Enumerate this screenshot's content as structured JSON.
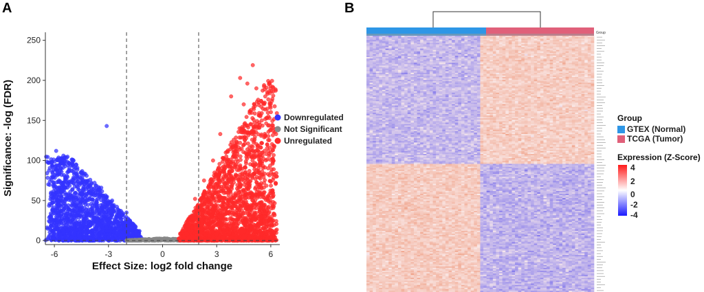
{
  "panels": {
    "a": "A",
    "b": "B"
  },
  "chart_data": [
    {
      "type": "scatter",
      "title": "",
      "xlabel": "Effect Size: log2 fold change",
      "ylabel": "Significance: -log (FDR)",
      "xlim": [
        -6.5,
        6.5
      ],
      "ylim": [
        -5,
        260
      ],
      "xticks": [
        -6,
        -3,
        0,
        3,
        6
      ],
      "yticks": [
        0,
        50,
        100,
        150,
        200,
        250
      ],
      "thresholds": {
        "x": [
          -2,
          2
        ],
        "y": 0
      },
      "series": [
        {
          "name": "Downregulated",
          "color": "#3333ff",
          "seed": 11,
          "count": 1700,
          "x_range": [
            -6.2,
            -1.2
          ],
          "y_typical_range": [
            0,
            110
          ],
          "points": [
            [
              -3.1,
              143
            ],
            [
              -5.9,
              112
            ],
            [
              -5.5,
              106
            ],
            [
              -5.0,
              101
            ],
            [
              -6.1,
              93
            ],
            [
              -4.8,
              95
            ],
            [
              -5.6,
              82
            ],
            [
              -6.0,
              66
            ],
            [
              -4.5,
              72
            ],
            [
              -3.4,
              66
            ],
            [
              -2.8,
              50
            ],
            [
              -2.0,
              35
            ],
            [
              -1.6,
              18
            ],
            [
              -1.3,
              8
            ],
            [
              -6.2,
              55
            ],
            [
              -5.8,
              46
            ]
          ]
        },
        {
          "name": "Not Significant",
          "color": "#888888",
          "seed": 23,
          "count": 320,
          "x_range": [
            -2.0,
            2.0
          ],
          "y_typical_range": [
            0,
            3
          ],
          "points": []
        },
        {
          "name": "Unregulated",
          "color": "#ff2a2a",
          "seed": 37,
          "count": 2300,
          "x_range": [
            1.0,
            6.3
          ],
          "y_typical_range": [
            0,
            200
          ],
          "points": [
            [
              5.0,
              219
            ],
            [
              4.3,
              203
            ],
            [
              4.7,
              196
            ],
            [
              3.8,
              180
            ],
            [
              5.2,
              190
            ],
            [
              4.5,
              170
            ],
            [
              5.5,
              150
            ],
            [
              3.2,
              133
            ],
            [
              4.9,
              163
            ],
            [
              5.8,
              120
            ],
            [
              6.1,
              96
            ],
            [
              6.3,
              80
            ],
            [
              2.8,
              100
            ],
            [
              2.3,
              75
            ],
            [
              1.8,
              52
            ],
            [
              1.3,
              22
            ]
          ]
        }
      ],
      "legend": [
        "Downregulated",
        "Not Significant",
        "Unregulated"
      ],
      "legend_position": "right"
    },
    {
      "type": "heatmap",
      "title": "",
      "seed": 101,
      "columns_per_group": 36,
      "rows_up_block": 90,
      "rows_down_block": 90,
      "groups": [
        {
          "name": "GTEX (Normal)",
          "color": "#2e96e6",
          "columns": 36
        },
        {
          "name": "TCGA (Tumor)",
          "color": "#e0607a",
          "columns": 36
        }
      ],
      "annotation_label": "Group",
      "color_scale": {
        "title": "Expression (Z-Score)",
        "min": -4,
        "max": 4,
        "ticks": [
          4,
          2,
          0,
          -2,
          -4
        ],
        "low": "#1a1aff",
        "mid": "#ffffff",
        "high": "#ff1a1a"
      },
      "block_pattern": {
        "top_genes": {
          "GTEX (Normal)": -1.6,
          "TCGA (Tumor)": 1.4
        },
        "bottom_genes": {
          "GTEX (Normal)": 1.5,
          "TCGA (Tumor)": -1.8
        }
      },
      "legend_title": "Group"
    }
  ]
}
